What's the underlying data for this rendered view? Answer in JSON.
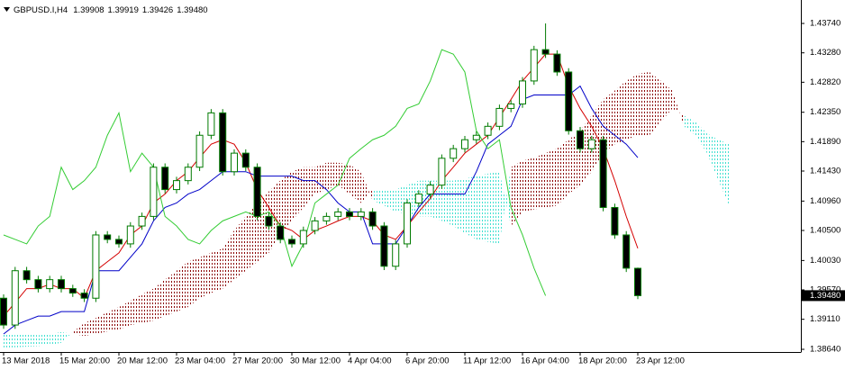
{
  "chart_data": {
    "type": "candlestick",
    "symbol": "GBPUSD.I,H4",
    "quote": [
      1.39908,
      1.39919,
      1.39426,
      {
        "value": 1.3948,
        "label": "1.39480"
      }
    ],
    "current_price": {
      "value": 1.3948,
      "label": "1.39480"
    },
    "categories": [
      "13 Mar 2018",
      null,
      null,
      null,
      null,
      "15 Mar 20:00",
      null,
      null,
      null,
      null,
      "20 Mar 12:00",
      null,
      null,
      null,
      null,
      "23 Mar 04:00",
      null,
      null,
      null,
      null,
      "27 Mar 20:00",
      null,
      null,
      null,
      null,
      "30 Mar 12:00",
      null,
      null,
      null,
      null,
      "4 Apr 04:00",
      null,
      null,
      null,
      null,
      "6 Apr 20:00",
      null,
      null,
      null,
      null,
      "11 Apr 12:00",
      null,
      null,
      null,
      null,
      "16 Apr 04:00",
      null,
      null,
      null,
      null,
      "18 Apr 20:00",
      null,
      null,
      null,
      null,
      "23 Apr 12:00",
      null,
      null,
      null,
      null,
      null,
      null,
      null,
      null
    ],
    "ohlc": [
      [
        1.3944,
        1.395,
        1.3896,
        1.3902
      ],
      [
        1.3902,
        1.3993,
        1.3896,
        1.3987
      ],
      [
        1.3987,
        1.3993,
        1.3967,
        1.3973
      ],
      [
        1.3973,
        1.3979,
        1.3953,
        1.3959
      ],
      [
        1.3959,
        1.3979,
        1.3953,
        1.3973
      ],
      [
        1.3973,
        1.3979,
        1.3953,
        1.3959
      ],
      [
        1.3959,
        1.3965,
        1.3946,
        1.3952
      ],
      [
        1.3952,
        1.3958,
        1.3938,
        1.3944
      ],
      [
        1.3944,
        1.4049,
        1.3938,
        1.4043
      ],
      [
        1.4043,
        1.4049,
        1.403,
        1.4036
      ],
      [
        1.4036,
        1.4042,
        1.4023,
        1.4029
      ],
      [
        1.4029,
        1.4063,
        1.4023,
        1.4057
      ],
      [
        1.4057,
        1.4078,
        1.4051,
        1.4072
      ],
      [
        1.4072,
        1.4155,
        1.4066,
        1.4149
      ],
      [
        1.4149,
        1.4155,
        1.4108,
        1.4114
      ],
      [
        1.4114,
        1.4134,
        1.4108,
        1.4128
      ],
      [
        1.4128,
        1.4155,
        1.4122,
        1.4149
      ],
      [
        1.4149,
        1.4205,
        1.4143,
        1.4199
      ],
      [
        1.4199,
        1.424,
        1.4193,
        1.4234
      ],
      [
        1.4234,
        1.424,
        1.4136,
        1.4142
      ],
      [
        1.4142,
        1.4177,
        1.4136,
        1.4171
      ],
      [
        1.4171,
        1.4177,
        1.4143,
        1.4149
      ],
      [
        1.4149,
        1.4155,
        1.4066,
        1.4072
      ],
      [
        1.4072,
        1.4078,
        1.4051,
        1.4057
      ],
      [
        1.4057,
        1.4063,
        1.403,
        1.4036
      ],
      [
        1.4036,
        1.4042,
        1.4023,
        1.4029
      ],
      [
        1.4029,
        1.4056,
        1.4023,
        1.405
      ],
      [
        1.405,
        1.4071,
        1.4044,
        1.4065
      ],
      [
        1.4065,
        1.4078,
        1.4059,
        1.4072
      ],
      [
        1.4072,
        1.4085,
        1.4066,
        1.4079
      ],
      [
        1.4079,
        1.4085,
        1.4066,
        1.4072
      ],
      [
        1.4072,
        1.4085,
        1.4066,
        1.4079
      ],
      [
        1.4079,
        1.4085,
        1.4051,
        1.4057
      ],
      [
        1.4057,
        1.4063,
        1.3988,
        1.3994
      ],
      [
        1.3994,
        1.4035,
        1.3988,
        1.4029
      ],
      [
        1.4029,
        1.4099,
        1.4023,
        1.4093
      ],
      [
        1.4093,
        1.4113,
        1.4087,
        1.4107
      ],
      [
        1.4107,
        1.4127,
        1.4101,
        1.4121
      ],
      [
        1.4121,
        1.4169,
        1.4115,
        1.4163
      ],
      [
        1.4163,
        1.4184,
        1.4157,
        1.4178
      ],
      [
        1.4178,
        1.4198,
        1.4172,
        1.4192
      ],
      [
        1.4192,
        1.4205,
        1.4186,
        1.4199
      ],
      [
        1.4199,
        1.4219,
        1.4193,
        1.4213
      ],
      [
        1.4213,
        1.4247,
        1.4207,
        1.4241
      ],
      [
        1.4241,
        1.4254,
        1.4235,
        1.4248
      ],
      [
        1.4248,
        1.429,
        1.4242,
        1.4284
      ],
      [
        1.4284,
        1.4339,
        1.4278,
        1.4333
      ],
      [
        1.4333,
        1.4374,
        1.432,
        1.4326
      ],
      [
        1.4326,
        1.4332,
        1.4292,
        1.4298
      ],
      [
        1.4298,
        1.4304,
        1.42,
        1.4206
      ],
      [
        1.4206,
        1.4212,
        1.4172,
        1.4178
      ],
      [
        1.4178,
        1.4198,
        1.4172,
        1.4192
      ],
      [
        1.4192,
        1.4198,
        1.408,
        1.4086
      ],
      [
        1.4086,
        1.4092,
        1.4037,
        1.4043
      ],
      [
        1.4043,
        1.4049,
        1.3985,
        1.3991
      ],
      [
        1.39908,
        1.39919,
        1.39426,
        1.3948
      ]
    ],
    "up_color": "#ffffff",
    "down_color": "#000000",
    "wick_color": "#007a00",
    "series": [
      {
        "color": "#d40000",
        "values": [
          1.3916,
          1.3937,
          1.3959,
          1.3959,
          1.3966,
          1.3959,
          1.3959,
          1.3944,
          1.3987,
          1.4001,
          1.4015,
          1.4043,
          1.4057,
          1.4093,
          1.4107,
          1.4128,
          1.4142,
          1.4164,
          1.4185,
          1.4192,
          1.4185,
          1.4156,
          1.4114,
          1.4086,
          1.4057,
          1.405,
          1.4036,
          1.405,
          1.4057,
          1.4065,
          1.4072,
          1.4072,
          1.4065,
          1.4043,
          1.4036,
          1.4057,
          1.4079,
          1.41,
          1.4128,
          1.4149,
          1.4171,
          1.4185,
          1.4199,
          1.4227,
          1.4255,
          1.4284,
          1.4305,
          1.4326,
          1.4326,
          1.4276,
          1.4241,
          1.4213,
          1.4178,
          1.4128,
          1.4072,
          1.4022,
          null,
          null,
          null,
          null,
          null,
          null,
          null,
          null
        ]
      },
      {
        "color": "#0000c8",
        "values": [
          1.3888,
          1.3902,
          1.3909,
          1.3916,
          1.3916,
          1.3923,
          1.3923,
          1.3923,
          1.3987,
          1.3987,
          1.3987,
          1.4008,
          1.4029,
          1.4065,
          1.4086,
          1.4093,
          1.4107,
          1.4114,
          1.4128,
          1.4142,
          1.4142,
          1.4142,
          1.4135,
          1.4135,
          1.4135,
          1.4135,
          1.4128,
          1.4128,
          1.4114,
          1.4093,
          1.4079,
          1.4079,
          1.4029,
          1.4029,
          1.4029,
          1.4057,
          1.4086,
          1.4107,
          1.4107,
          1.4107,
          1.4107,
          1.4142,
          1.4185,
          1.4199,
          1.4213,
          1.4255,
          1.4262,
          1.4262,
          1.4262,
          1.4262,
          1.4276,
          1.4241,
          1.4213,
          1.4199,
          1.4185,
          1.4164,
          null,
          null,
          null,
          null,
          null,
          null,
          null,
          null
        ]
      },
      {
        "color": "#33cc33",
        "values": [
          1.4043,
          1.4036,
          1.4029,
          1.4057,
          1.4072,
          1.4149,
          1.4114,
          1.4128,
          1.4149,
          1.4199,
          1.4234,
          1.4142,
          1.4171,
          1.4149,
          1.4072,
          1.4057,
          1.4036,
          1.4029,
          1.405,
          1.4065,
          1.4072,
          1.4079,
          1.4072,
          1.4079,
          1.4057,
          1.3994,
          1.4029,
          1.4093,
          1.4107,
          1.4121,
          1.4163,
          1.4178,
          1.4192,
          1.4199,
          1.4213,
          1.4241,
          1.4248,
          1.4284,
          1.4333,
          1.4326,
          1.4298,
          1.4206,
          1.4178,
          1.4192,
          1.4086,
          1.4043,
          1.3991,
          1.3948,
          null,
          null,
          null,
          null,
          null,
          null,
          null,
          null,
          null,
          null,
          null,
          null,
          null,
          null,
          null,
          null
        ]
      }
    ],
    "cloud": {
      "up_color": "#40e0d0",
      "down_color": "#8b0000",
      "span_a": [
        1.3888,
        1.3888,
        1.3888,
        1.3886,
        1.3888,
        1.3891,
        1.3888,
        1.3885,
        1.3888,
        1.3892,
        1.3895,
        1.3902,
        1.3905,
        1.3909,
        1.3916,
        1.3923,
        1.393,
        1.3944,
        1.3952,
        1.3959,
        1.3973,
        1.3987,
        1.4001,
        1.4015,
        1.4043,
        1.4065,
        1.4086,
        1.4107,
        1.4114,
        1.4121,
        1.4107,
        1.4093,
        1.4114,
        1.4114,
        1.4114,
        1.4121,
        1.4128,
        1.4128,
        1.4128,
        1.4128,
        1.4131,
        1.4135,
        1.4139,
        1.4142,
        1.4057,
        1.4079,
        1.4083,
        1.4086,
        1.4089,
        1.4107,
        1.4121,
        1.4142,
        1.4171,
        1.4185,
        1.4192,
        1.4199,
        1.4199,
        1.422,
        1.4241,
        1.423,
        1.422,
        1.4202,
        1.4192,
        1.4185
      ],
      "span_b": [
        1.3867,
        1.3867,
        1.3868,
        1.3869,
        1.3871,
        1.3874,
        1.3891,
        1.3905,
        1.3913,
        1.3922,
        1.393,
        1.394,
        1.395,
        1.3959,
        1.3973,
        1.3987,
        1.4001,
        1.4008,
        1.4015,
        1.4022,
        1.405,
        1.4072,
        1.4093,
        1.4111,
        1.4128,
        1.4142,
        1.4149,
        1.4149,
        1.4156,
        1.4156,
        1.4153,
        1.4142,
        1.4097,
        1.4089,
        1.4079,
        1.4076,
        1.4072,
        1.4072,
        1.4065,
        1.4057,
        1.4046,
        1.4036,
        1.4032,
        1.4029,
        1.4149,
        1.4159,
        1.4164,
        1.4171,
        1.4178,
        1.4192,
        1.4206,
        1.423,
        1.4255,
        1.4269,
        1.4284,
        1.4295,
        1.4298,
        1.4284,
        1.4269,
        1.4213,
        1.4199,
        1.4171,
        1.4128,
        1.4086
      ]
    },
    "ylim": [
      1.38598,
      1.44107
    ],
    "yticks": [
      {
        "value": 1.4374,
        "label": "1.43740"
      },
      {
        "value": 1.4328,
        "label": "1.43280"
      },
      {
        "value": 1.4282,
        "label": "1.42820"
      },
      {
        "value": 1.4235,
        "label": "1.42350"
      },
      {
        "value": 1.4189,
        "label": "1.41890"
      },
      {
        "value": 1.4143,
        "label": "1.41430"
      },
      {
        "value": 1.4096,
        "label": "1.40960"
      },
      {
        "value": 1.405,
        "label": "1.40500"
      },
      {
        "value": 1.4003,
        "label": "1.40030"
      },
      {
        "value": 1.3957,
        "label": "1.39570"
      },
      {
        "value": 1.3911,
        "label": "1.39110"
      },
      {
        "value": 1.3864,
        "label": "1.38640"
      }
    ]
  }
}
